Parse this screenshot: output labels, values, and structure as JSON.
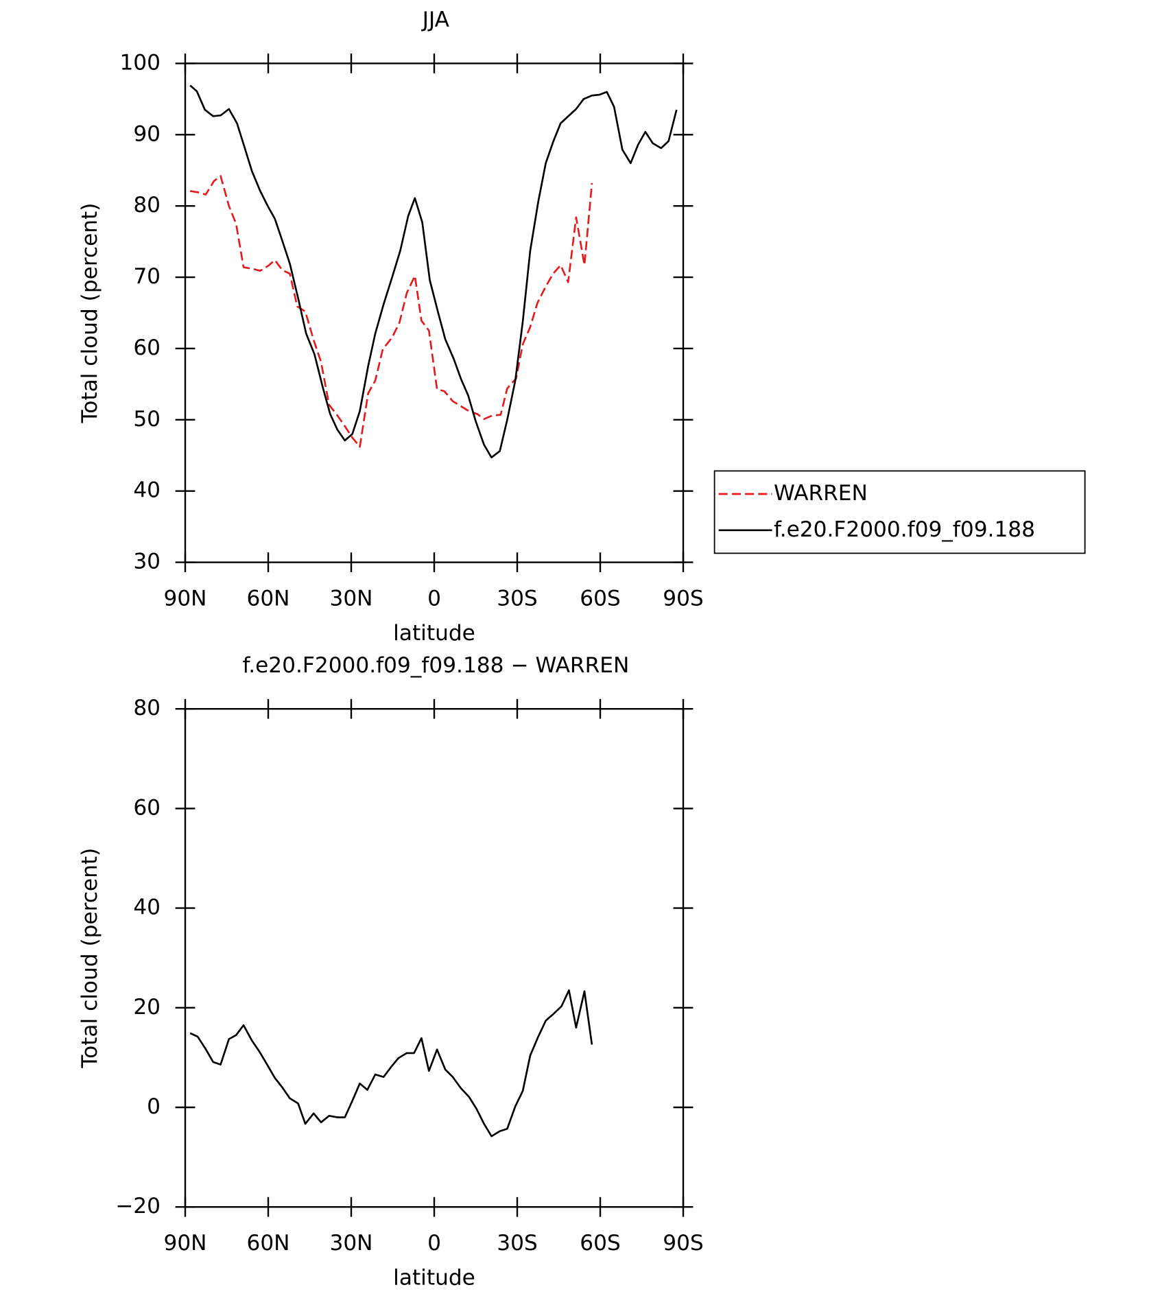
{
  "chart_data": [
    {
      "type": "line",
      "title": "JJA",
      "xlabel": "latitude",
      "ylabel": "Total cloud (percent)",
      "xlim": [
        90,
        -90
      ],
      "xticks": [
        {
          "value": 90,
          "label": "90N"
        },
        {
          "value": 60,
          "label": "60N"
        },
        {
          "value": 30,
          "label": "30N"
        },
        0,
        {
          "value": -30,
          "label": "30S"
        },
        {
          "value": -60,
          "label": "60S"
        },
        {
          "value": -90,
          "label": "90S"
        }
      ],
      "ylim": [
        30,
        100
      ],
      "yticks": [
        30,
        40,
        50,
        60,
        70,
        80,
        90,
        100
      ],
      "legend": "right",
      "series": [
        {
          "name": "WARREN",
          "color": "#e41a1c",
          "dashed": true,
          "x": [
            88.2,
            85.2,
            82.6,
            79.6,
            77.2,
            74.2,
            71.6,
            68.9,
            65.9,
            62.9,
            60.0,
            57.6,
            54.9,
            52.2,
            49.5,
            46.6,
            43.6,
            40.9,
            38.0,
            35.0,
            32.3,
            29.6,
            26.9,
            23.9,
            21.3,
            18.6,
            15.3,
            12.6,
            9.9,
            7.0,
            4.6,
            1.9,
            -1.0,
            -3.7,
            -6.7,
            -9.7,
            -12.6,
            -15.6,
            -18.0,
            -21.0,
            -24.0,
            -26.4,
            -29.6,
            -32.0,
            -34.7,
            -37.3,
            -40.3,
            -43.0,
            -45.7,
            -48.4,
            -51.3,
            -54.3,
            -57.0
          ],
          "values": [
            82.1,
            81.9,
            81.6,
            83.5,
            84.2,
            80.0,
            77.5,
            71.4,
            71.2,
            70.9,
            71.6,
            72.4,
            71.0,
            70.5,
            65.9,
            65.2,
            61.2,
            58.1,
            52.1,
            50.6,
            49.1,
            47.5,
            46.2,
            53.7,
            55.5,
            59.9,
            61.5,
            63.6,
            67.8,
            70.2,
            63.9,
            62.5,
            54.3,
            54.0,
            52.6,
            51.9,
            51.2,
            50.8,
            50.1,
            50.6,
            50.7,
            54.4,
            55.8,
            60.6,
            63.0,
            66.4,
            68.7,
            70.5,
            71.7,
            69.3,
            78.4,
            71.7,
            83.2
          ]
        },
        {
          "name": "f.e20.F2000.f09_f09.188",
          "color": "#000000",
          "dashed": false,
          "x": [
            88.2,
            85.8,
            82.9,
            79.9,
            77.2,
            74.2,
            71.3,
            68.6,
            65.9,
            62.9,
            60.2,
            57.6,
            54.9,
            52.2,
            49.2,
            46.3,
            43.3,
            40.3,
            37.6,
            35.0,
            32.3,
            29.6,
            26.9,
            23.9,
            21.3,
            18.3,
            15.3,
            12.3,
            9.4,
            7.0,
            4.3,
            1.6,
            -1.3,
            -4.0,
            -7.0,
            -9.7,
            -12.3,
            -15.0,
            -18.0,
            -20.7,
            -23.7,
            -26.4,
            -29.3,
            -32.0,
            -34.7,
            -37.6,
            -40.3,
            -43.0,
            -45.7,
            -51.3,
            -54.0,
            -57.0,
            -59.7,
            -62.4,
            -65.0,
            -68.0,
            -71.0,
            -73.7,
            -76.3,
            -79.0,
            -82.0,
            -84.7,
            -87.6
          ],
          "values": [
            96.9,
            96.1,
            93.5,
            92.6,
            92.7,
            93.6,
            91.6,
            88.3,
            84.9,
            82.1,
            80.0,
            78.2,
            75.1,
            71.9,
            67.1,
            62.1,
            59.2,
            54.6,
            50.8,
            48.6,
            47.1,
            48.0,
            51.2,
            57.5,
            62.1,
            66.2,
            69.9,
            73.7,
            78.6,
            81.1,
            77.7,
            69.6,
            65.2,
            61.3,
            58.6,
            55.7,
            53.4,
            49.8,
            46.5,
            44.7,
            45.6,
            50.0,
            55.5,
            63.8,
            73.7,
            80.6,
            86.0,
            89.0,
            91.6,
            93.6,
            95.0,
            95.5,
            95.6,
            96.0,
            93.9,
            87.9,
            86.0,
            88.6,
            90.4,
            88.8,
            88.1,
            89.1,
            93.5
          ]
        }
      ]
    },
    {
      "type": "line",
      "title": "f.e20.F2000.f09_f09.188 − WARREN",
      "xlabel": "latitude",
      "ylabel": "Total cloud (percent)",
      "xlim": [
        90,
        -90
      ],
      "xticks": [
        {
          "value": 90,
          "label": "90N"
        },
        {
          "value": 60,
          "label": "60N"
        },
        {
          "value": 30,
          "label": "30N"
        },
        0,
        {
          "value": -30,
          "label": "30S"
        },
        {
          "value": -60,
          "label": "60S"
        },
        {
          "value": -90,
          "label": "90S"
        }
      ],
      "ylim": [
        -20,
        80
      ],
      "yticks": [
        {
          "value": -20,
          "label": "−20"
        },
        0,
        20,
        40,
        60,
        80
      ],
      "series": [
        {
          "color": "#000000",
          "dashed": false,
          "x": [
            88.2,
            85.5,
            82.6,
            79.9,
            77.2,
            74.2,
            71.6,
            68.9,
            65.9,
            63.2,
            60.2,
            57.6,
            54.9,
            52.2,
            49.2,
            46.6,
            43.6,
            40.9,
            38.0,
            35.0,
            32.3,
            29.6,
            26.9,
            24.2,
            21.3,
            18.3,
            15.6,
            12.9,
            9.9,
            7.3,
            4.6,
            1.9,
            -1.0,
            -4.0,
            -6.7,
            -9.7,
            -12.6,
            -15.3,
            -18.0,
            -20.7,
            -23.7,
            -26.4,
            -29.3,
            -32.0,
            -34.7,
            -37.6,
            -40.3,
            -43.0,
            -46.0,
            -48.7,
            -51.3,
            -54.3,
            -57.0
          ],
          "values": [
            14.9,
            14.2,
            11.7,
            9.1,
            8.6,
            13.7,
            14.5,
            16.5,
            13.4,
            11.2,
            8.4,
            5.9,
            4.0,
            1.8,
            0.8,
            -3.3,
            -1.2,
            -3.0,
            -1.7,
            -2.0,
            -2.0,
            1.3,
            4.8,
            3.5,
            6.6,
            6.1,
            8.1,
            9.9,
            10.9,
            10.9,
            13.9,
            7.3,
            11.6,
            7.6,
            6.1,
            3.8,
            2.1,
            -0.3,
            -3.3,
            -5.8,
            -4.8,
            -4.3,
            0.2,
            3.3,
            10.4,
            14.2,
            17.4,
            18.7,
            20.3,
            23.5,
            16.0,
            23.3,
            12.6
          ]
        }
      ]
    }
  ]
}
